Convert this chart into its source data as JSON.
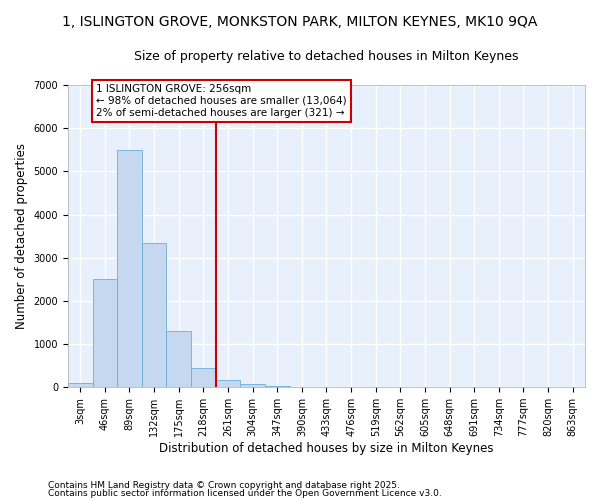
{
  "title_line1": "1, ISLINGTON GROVE, MONKSTON PARK, MILTON KEYNES, MK10 9QA",
  "title_line2": "Size of property relative to detached houses in Milton Keynes",
  "xlabel": "Distribution of detached houses by size in Milton Keynes",
  "ylabel": "Number of detached properties",
  "bar_color": "#c5d8f0",
  "bar_edge_color": "#6baed6",
  "fig_background_color": "#ffffff",
  "ax_background_color": "#e8f0fb",
  "grid_color": "#ffffff",
  "vline_color": "#cc0000",
  "annotation_box_edge_color": "#cc0000",
  "annotation_text_line1": "1 ISLINGTON GROVE: 256sqm",
  "annotation_text_line2": "← 98% of detached houses are smaller (13,064)",
  "annotation_text_line3": "2% of semi-detached houses are larger (321) →",
  "categories": [
    "3sqm",
    "46sqm",
    "89sqm",
    "132sqm",
    "175sqm",
    "218sqm",
    "261sqm",
    "304sqm",
    "347sqm",
    "390sqm",
    "433sqm",
    "476sqm",
    "519sqm",
    "562sqm",
    "605sqm",
    "648sqm",
    "691sqm",
    "734sqm",
    "777sqm",
    "820sqm",
    "863sqm"
  ],
  "bar_heights": [
    100,
    2500,
    5500,
    3350,
    1300,
    450,
    175,
    80,
    30,
    5,
    2,
    0,
    0,
    0,
    0,
    0,
    0,
    0,
    0,
    0,
    0
  ],
  "vline_x_index": 6,
  "ylim": [
    0,
    7000
  ],
  "yticks": [
    0,
    1000,
    2000,
    3000,
    4000,
    5000,
    6000,
    7000
  ],
  "footnote_line1": "Contains HM Land Registry data © Crown copyright and database right 2025.",
  "footnote_line2": "Contains public sector information licensed under the Open Government Licence v3.0.",
  "title_fontsize": 10,
  "subtitle_fontsize": 9,
  "axis_label_fontsize": 8.5,
  "tick_fontsize": 7,
  "annotation_fontsize": 7.5,
  "footnote_fontsize": 6.5
}
